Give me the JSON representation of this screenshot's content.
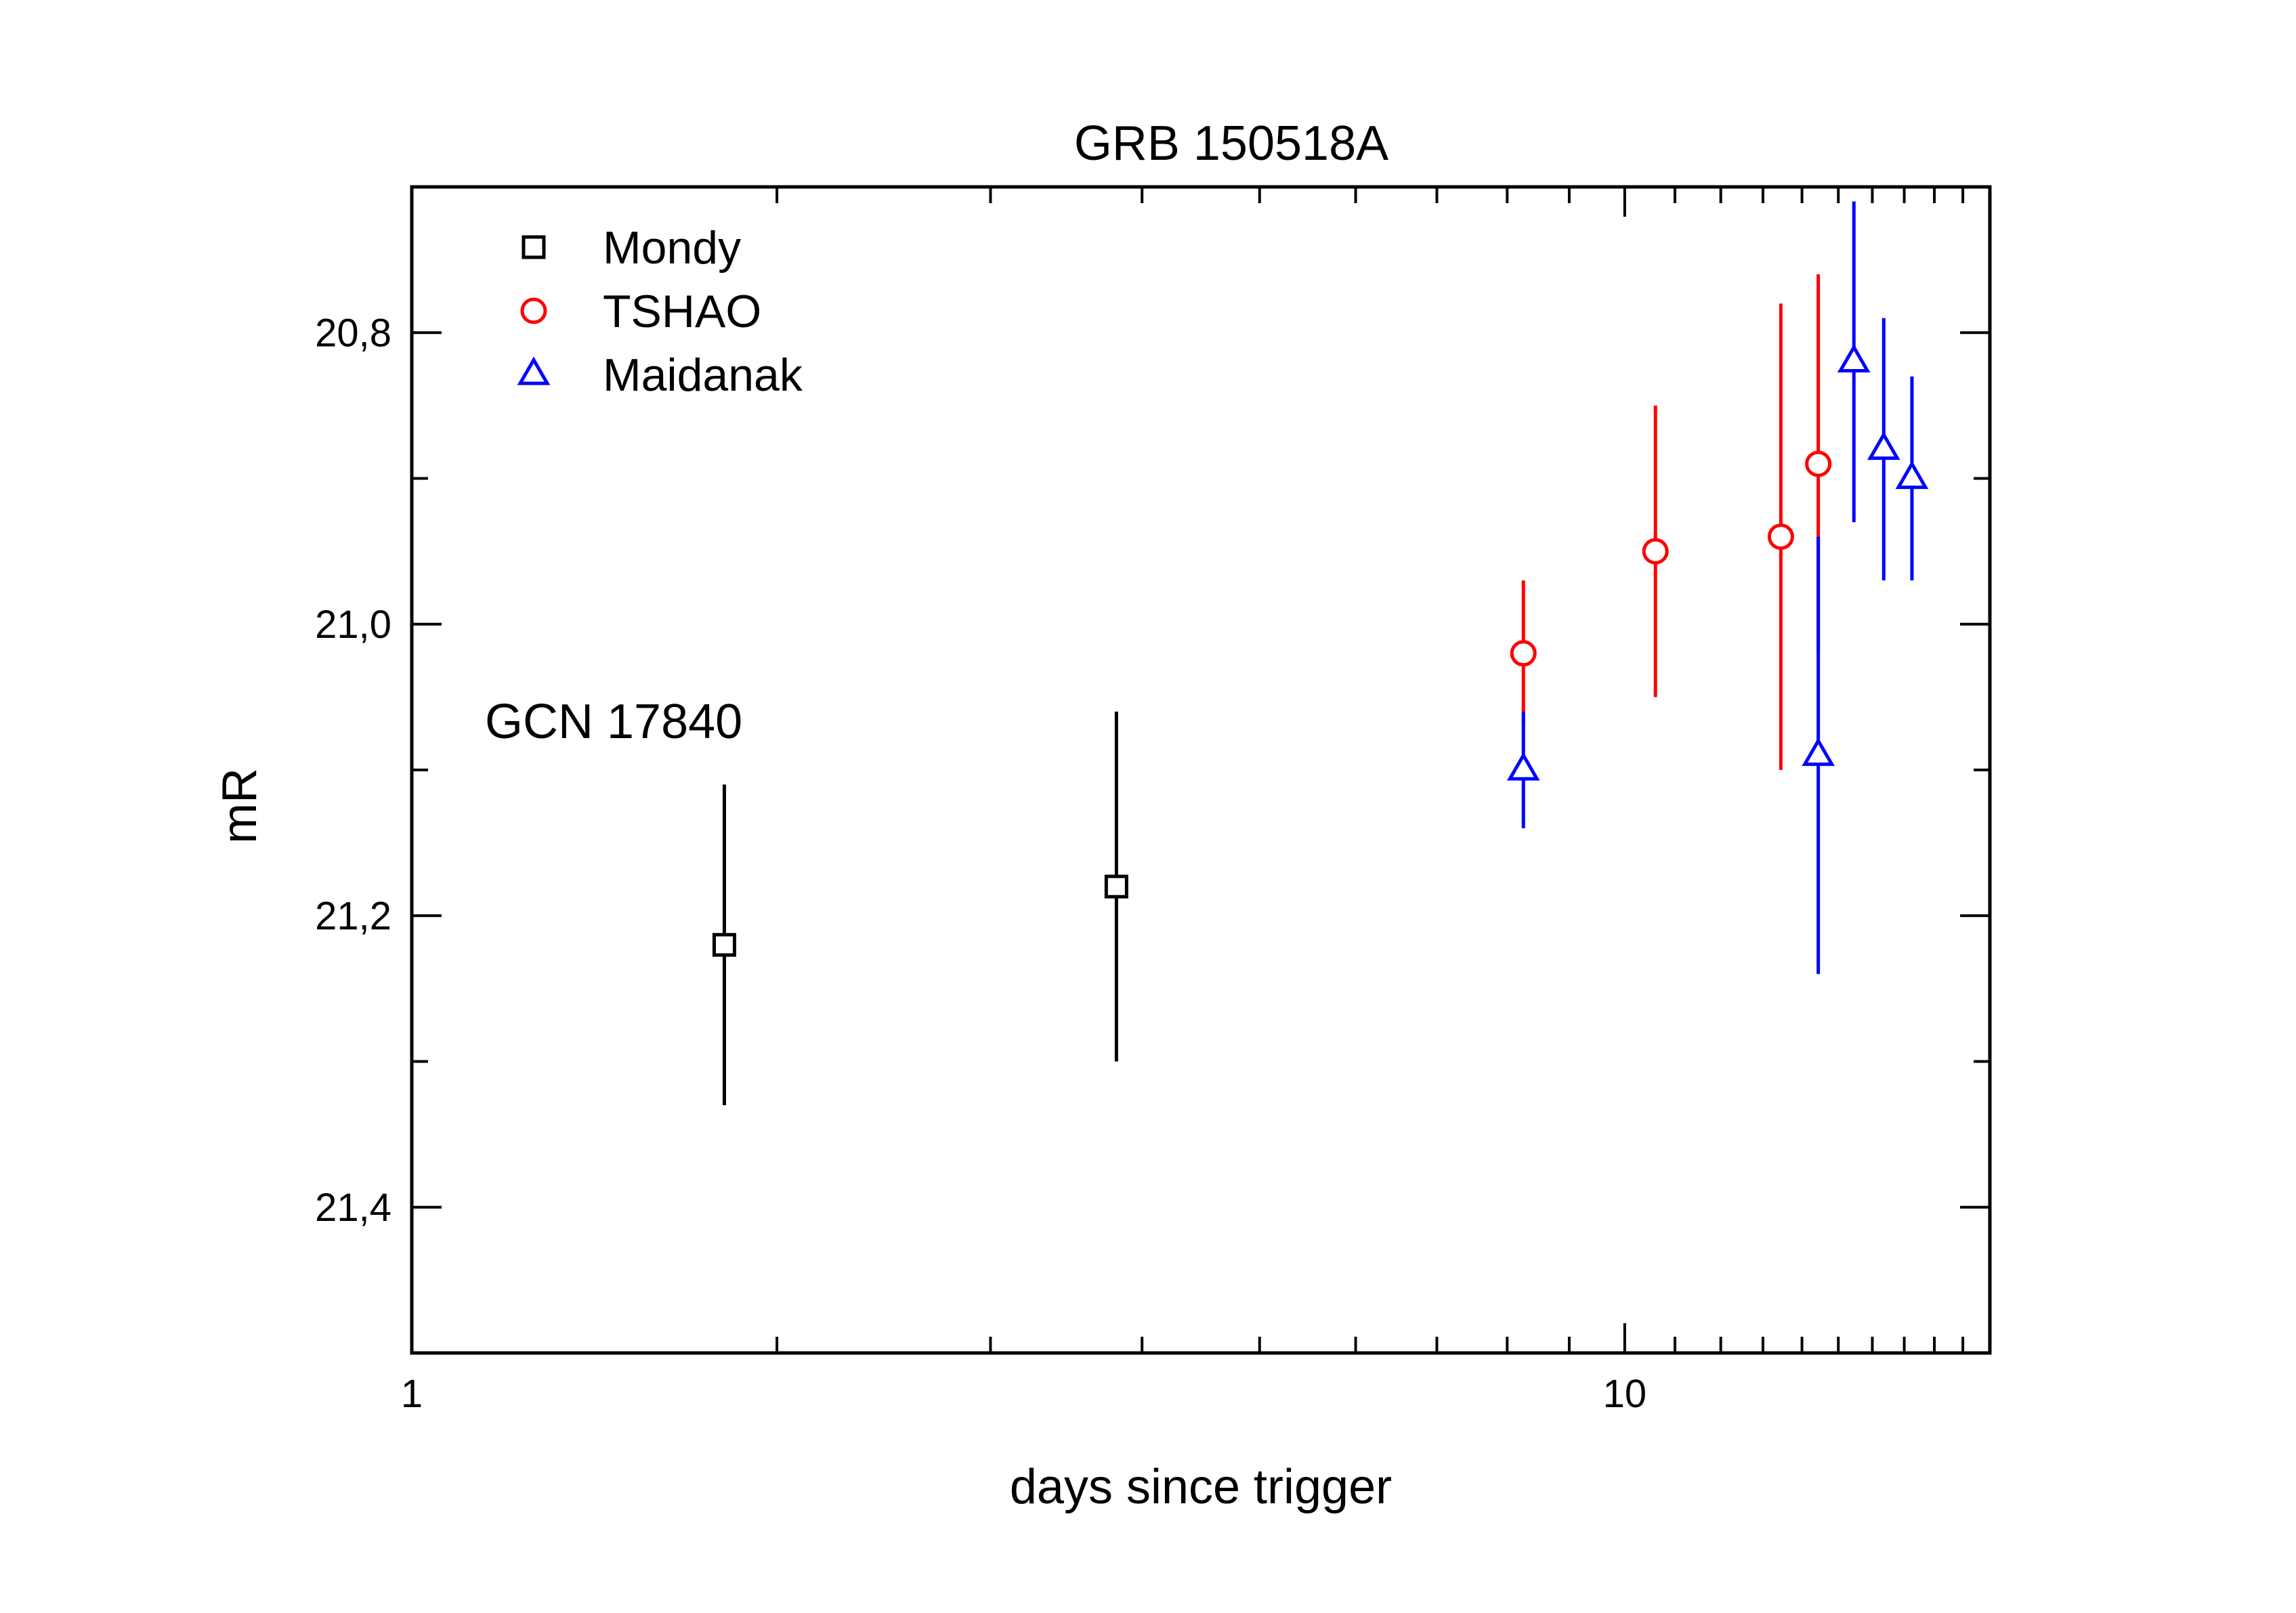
{
  "chart_data": {
    "type": "scatter",
    "title": "GRB 150518A",
    "xlabel": "days since trigger",
    "ylabel": "mR",
    "x_scale": "log",
    "xlim": [
      1,
      20
    ],
    "ylim": [
      21.5,
      20.7
    ],
    "y_inverted": true,
    "x_tick_labels": [
      "1",
      "10"
    ],
    "y_tick_labels": [
      "20,8",
      "21,0",
      "21,2",
      "21,4"
    ],
    "grid": false,
    "legend_position": "top-left",
    "annotations": [
      {
        "text": "GCN 17840",
        "x": 1.2,
        "y": 21.07
      }
    ],
    "series": [
      {
        "name": "Mondy",
        "marker": "square",
        "color": "#000000",
        "points": [
          {
            "x": 1.81,
            "y": 21.22,
            "ylo": 21.33,
            "yhi": 21.11
          },
          {
            "x": 3.81,
            "y": 21.18,
            "ylo": 21.3,
            "yhi": 21.06
          }
        ]
      },
      {
        "name": "TSHAO",
        "marker": "circle",
        "color": "#ff0000",
        "points": [
          {
            "x": 8.25,
            "y": 21.02,
            "ylo": 21.07,
            "yhi": 20.97
          },
          {
            "x": 10.6,
            "y": 20.95,
            "ylo": 21.05,
            "yhi": 20.85
          },
          {
            "x": 13.45,
            "y": 20.94,
            "ylo": 21.1,
            "yhi": 20.78
          },
          {
            "x": 14.44,
            "y": 20.89,
            "ylo": 21.02,
            "yhi": 20.76
          }
        ]
      },
      {
        "name": "Maidanak",
        "marker": "triangle",
        "color": "#0000ff",
        "points": [
          {
            "x": 8.25,
            "y": 21.1,
            "ylo": 21.14,
            "yhi": 21.06
          },
          {
            "x": 14.44,
            "y": 21.09,
            "ylo": 21.24,
            "yhi": 20.94
          },
          {
            "x": 15.45,
            "y": 20.82,
            "ylo": 20.93,
            "yhi": 20.71
          },
          {
            "x": 16.35,
            "y": 20.88,
            "ylo": 20.97,
            "yhi": 20.79
          },
          {
            "x": 17.25,
            "y": 20.9,
            "ylo": 20.97,
            "yhi": 20.83
          }
        ]
      }
    ]
  }
}
